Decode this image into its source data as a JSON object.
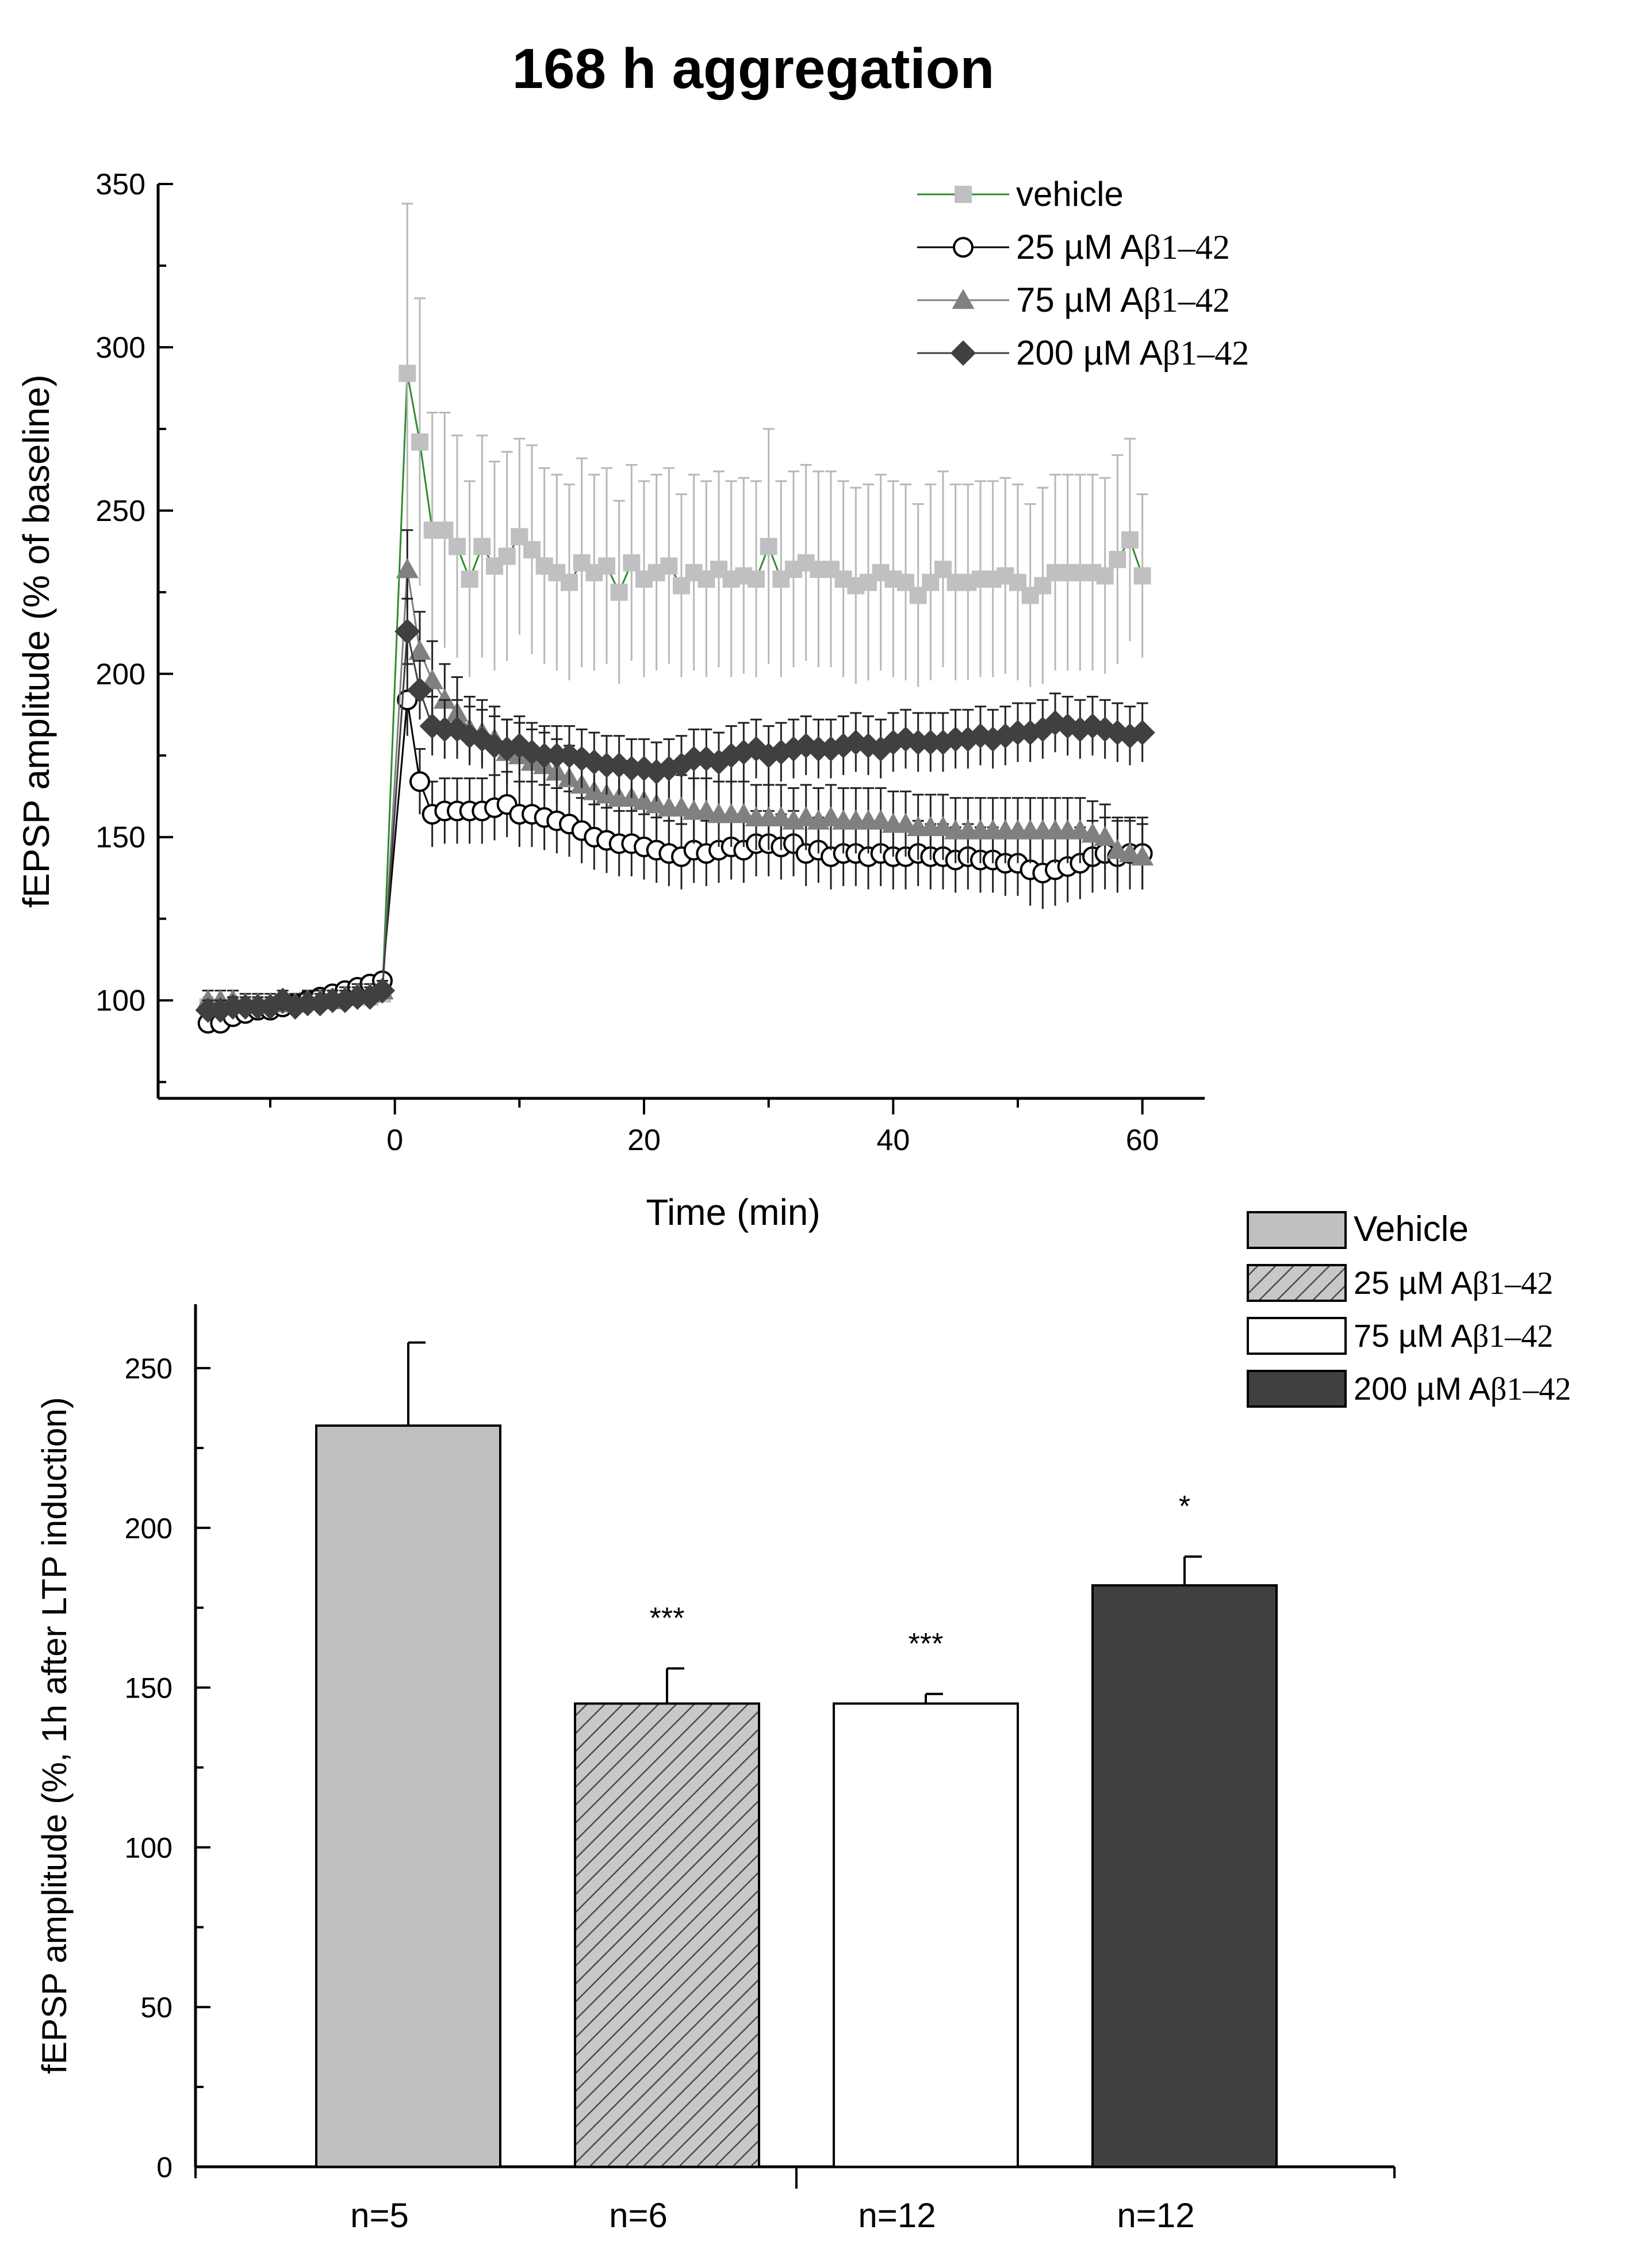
{
  "title": "168 h aggregation",
  "chart_data": [
    {
      "type": "line",
      "title": "168 h aggregation",
      "xlabel": "Time (min)",
      "ylabel": "fEPSP amplitude (% of baseline)",
      "xlim": [
        -19,
        65
      ],
      "ylim": [
        70,
        350
      ],
      "xticks": [
        0,
        20,
        40,
        60
      ],
      "yticks": [
        100,
        150,
        200,
        250,
        300,
        350
      ],
      "legend_position": "top-right",
      "series": [
        {
          "name": "vehicle",
          "legend_label": "vehicle",
          "marker": "square",
          "color": "#c0c0c0",
          "line_color": "#2e8b2e",
          "x": [
            -15,
            -14,
            -13,
            -12,
            -11,
            -10,
            -9,
            -8,
            -7,
            -6,
            -5,
            -4,
            -3,
            -2,
            -1,
            1,
            2,
            3,
            4,
            5,
            6,
            7,
            8,
            9,
            10,
            11,
            12,
            13,
            14,
            15,
            16,
            17,
            18,
            19,
            20,
            21,
            22,
            23,
            24,
            25,
            26,
            27,
            28,
            29,
            30,
            31,
            32,
            33,
            34,
            35,
            36,
            37,
            38,
            39,
            40,
            41,
            42,
            43,
            44,
            45,
            46,
            47,
            48,
            49,
            50,
            51,
            52,
            53,
            54,
            55,
            56,
            57,
            58,
            59,
            60
          ],
          "y": [
            98,
            97,
            98,
            97,
            98,
            98,
            99,
            99,
            100,
            100,
            100,
            101,
            101,
            101,
            102,
            292,
            271,
            244,
            244,
            239,
            229,
            239,
            233,
            236,
            242,
            238,
            233,
            231,
            228,
            234,
            231,
            233,
            225,
            234,
            229,
            231,
            233,
            227,
            231,
            229,
            232,
            229,
            230,
            229,
            239,
            229,
            232,
            234,
            232,
            232,
            229,
            227,
            228,
            231,
            229,
            228,
            224,
            228,
            232,
            228,
            228,
            229,
            229,
            230,
            228,
            224,
            227,
            231,
            231,
            231,
            231,
            230,
            235,
            241,
            230
          ],
          "err": [
            3,
            3,
            3,
            3,
            3,
            3,
            3,
            3,
            3,
            3,
            3,
            3,
            3,
            3,
            3,
            52,
            44,
            36,
            36,
            34,
            30,
            34,
            32,
            32,
            30,
            32,
            30,
            30,
            30,
            32,
            30,
            30,
            28,
            30,
            30,
            30,
            30,
            28,
            30,
            30,
            30,
            30,
            30,
            30,
            36,
            30,
            30,
            30,
            30,
            30,
            30,
            30,
            30,
            30,
            30,
            30,
            28,
            30,
            30,
            30,
            30,
            30,
            30,
            30,
            30,
            28,
            30,
            30,
            30,
            30,
            30,
            30,
            32,
            31,
            25
          ]
        },
        {
          "name": "25 µM Aβ1–42",
          "legend_prefix": "25 µM A",
          "legend_suffix": "β1–42",
          "marker": "circle-open",
          "color": "#000000",
          "line_color": "#000000",
          "x": [
            -15,
            -14,
            -13,
            -12,
            -11,
            -10,
            -9,
            -8,
            -7,
            -6,
            -5,
            -4,
            -3,
            -2,
            -1,
            1,
            2,
            3,
            4,
            5,
            6,
            7,
            8,
            9,
            10,
            11,
            12,
            13,
            14,
            15,
            16,
            17,
            18,
            19,
            20,
            21,
            22,
            23,
            24,
            25,
            26,
            27,
            28,
            29,
            30,
            31,
            32,
            33,
            34,
            35,
            36,
            37,
            38,
            39,
            40,
            41,
            42,
            43,
            44,
            45,
            46,
            47,
            48,
            49,
            50,
            51,
            52,
            53,
            54,
            55,
            56,
            57,
            58,
            59,
            60
          ],
          "y": [
            93,
            93,
            95,
            96,
            97,
            97,
            98,
            99,
            100,
            101,
            102,
            103,
            104,
            105,
            106,
            192,
            167,
            157,
            158,
            158,
            158,
            158,
            159,
            160,
            157,
            157,
            156,
            155,
            154,
            152,
            150,
            149,
            148,
            148,
            147,
            146,
            145,
            144,
            146,
            145,
            146,
            147,
            146,
            148,
            148,
            147,
            148,
            145,
            146,
            144,
            145,
            145,
            144,
            145,
            144,
            144,
            145,
            144,
            144,
            143,
            144,
            143,
            143,
            142,
            142,
            140,
            139,
            140,
            141,
            142,
            144,
            145,
            144,
            145,
            145
          ],
          "err": [
            2,
            2,
            2,
            2,
            2,
            2,
            2,
            2,
            2,
            2,
            2,
            2,
            2,
            2,
            2,
            11,
            10,
            10,
            10,
            10,
            10,
            10,
            10,
            10,
            10,
            10,
            10,
            10,
            10,
            10,
            10,
            10,
            10,
            10,
            10,
            10,
            10,
            10,
            10,
            10,
            10,
            10,
            10,
            10,
            10,
            10,
            10,
            10,
            10,
            10,
            10,
            10,
            10,
            10,
            10,
            10,
            10,
            10,
            10,
            10,
            10,
            10,
            10,
            10,
            10,
            11,
            11,
            11,
            11,
            11,
            11,
            11,
            11,
            11,
            11
          ]
        },
        {
          "name": "75 µM Aβ1–42",
          "legend_prefix": "75 µM A",
          "legend_suffix": "β1–42",
          "marker": "triangle",
          "color": "#808080",
          "line_color": "#808080",
          "x": [
            -15,
            -14,
            -13,
            -12,
            -11,
            -10,
            -9,
            -8,
            -7,
            -6,
            -5,
            -4,
            -3,
            -2,
            -1,
            1,
            2,
            3,
            4,
            5,
            6,
            7,
            8,
            9,
            10,
            11,
            12,
            13,
            14,
            15,
            16,
            17,
            18,
            19,
            20,
            21,
            22,
            23,
            24,
            25,
            26,
            27,
            28,
            29,
            30,
            31,
            32,
            33,
            34,
            35,
            36,
            37,
            38,
            39,
            40,
            41,
            42,
            43,
            44,
            45,
            46,
            47,
            48,
            49,
            50,
            51,
            52,
            53,
            54,
            55,
            56,
            57,
            58,
            59,
            60
          ],
          "y": [
            100,
            100,
            100,
            99,
            99,
            99,
            99,
            99,
            100,
            100,
            100,
            101,
            102,
            102,
            103,
            232,
            207,
            198,
            192,
            188,
            183,
            182,
            180,
            176,
            175,
            173,
            172,
            170,
            168,
            166,
            164,
            163,
            162,
            162,
            161,
            160,
            159,
            159,
            158,
            158,
            157,
            157,
            157,
            156,
            156,
            156,
            155,
            156,
            155,
            156,
            155,
            155,
            155,
            155,
            154,
            154,
            153,
            153,
            153,
            152,
            152,
            152,
            152,
            152,
            152,
            152,
            152,
            152,
            152,
            152,
            151,
            150,
            146,
            145,
            144
          ],
          "err": [
            3,
            3,
            3,
            3,
            3,
            3,
            3,
            3,
            3,
            3,
            3,
            3,
            3,
            3,
            3,
            12,
            12,
            12,
            11,
            11,
            10,
            10,
            10,
            10,
            10,
            10,
            10,
            10,
            10,
            10,
            10,
            10,
            10,
            10,
            10,
            10,
            10,
            10,
            10,
            10,
            10,
            10,
            10,
            10,
            10,
            10,
            10,
            10,
            10,
            10,
            10,
            10,
            10,
            10,
            10,
            10,
            10,
            10,
            10,
            10,
            10,
            10,
            10,
            10,
            10,
            10,
            10,
            10,
            10,
            10,
            10,
            10,
            10,
            10,
            10
          ]
        },
        {
          "name": "200 µM Aβ1–42",
          "legend_prefix": "200 µM A",
          "legend_suffix": "β1–42",
          "marker": "diamond",
          "color": "#404040",
          "line_color": "#404040",
          "x": [
            -15,
            -14,
            -13,
            -12,
            -11,
            -10,
            -9,
            -8,
            -7,
            -6,
            -5,
            -4,
            -3,
            -2,
            -1,
            1,
            2,
            3,
            4,
            5,
            6,
            7,
            8,
            9,
            10,
            11,
            12,
            13,
            14,
            15,
            16,
            17,
            18,
            19,
            20,
            21,
            22,
            23,
            24,
            25,
            26,
            27,
            28,
            29,
            30,
            31,
            32,
            33,
            34,
            35,
            36,
            37,
            38,
            39,
            40,
            41,
            42,
            43,
            44,
            45,
            46,
            47,
            48,
            49,
            50,
            51,
            52,
            53,
            54,
            55,
            56,
            57,
            58,
            59,
            60
          ],
          "y": [
            97,
            97,
            98,
            98,
            98,
            98,
            100,
            98,
            99,
            99,
            100,
            100,
            101,
            101,
            103,
            213,
            195,
            184,
            183,
            183,
            181,
            180,
            178,
            177,
            178,
            176,
            175,
            175,
            175,
            174,
            173,
            172,
            172,
            171,
            171,
            170,
            171,
            172,
            174,
            174,
            173,
            175,
            176,
            177,
            175,
            176,
            177,
            178,
            177,
            177,
            178,
            179,
            178,
            177,
            179,
            180,
            179,
            179,
            179,
            180,
            180,
            181,
            180,
            181,
            182,
            182,
            183,
            185,
            184,
            183,
            184,
            183,
            182,
            181,
            182
          ],
          "err": [
            3,
            3,
            3,
            3,
            3,
            3,
            3,
            3,
            3,
            3,
            3,
            3,
            3,
            3,
            3,
            10,
            9,
            9,
            9,
            9,
            9,
            9,
            9,
            9,
            9,
            9,
            9,
            9,
            9,
            9,
            9,
            9,
            9,
            9,
            9,
            9,
            9,
            9,
            9,
            9,
            9,
            9,
            9,
            9,
            9,
            9,
            9,
            9,
            9,
            9,
            9,
            9,
            9,
            9,
            9,
            9,
            9,
            9,
            9,
            9,
            9,
            9,
            9,
            9,
            9,
            9,
            9,
            9,
            9,
            9,
            9,
            9,
            9,
            9,
            9
          ]
        }
      ]
    },
    {
      "type": "bar",
      "title": "",
      "xlabel": "",
      "ylabel": "fEPSP amplitude (%, 1h after LTP induction)",
      "ylim": [
        0,
        270
      ],
      "yticks": [
        0,
        50,
        100,
        150,
        200,
        250
      ],
      "legend_position": "top-right",
      "categories": [
        "n=5",
        "n=6",
        "n=12",
        "n=12"
      ],
      "series": [
        {
          "name": "Vehicle",
          "legend_prefix": "Vehicle",
          "legend_suffix": "",
          "fill": "#c0c0c0",
          "pattern": "solid",
          "value": 232,
          "err": 26,
          "significance": ""
        },
        {
          "name": "25 µM Aβ1–42",
          "legend_prefix": "25 µM A",
          "legend_suffix": "β1–42",
          "fill": "#c8c8c8",
          "pattern": "hatch",
          "value": 145,
          "err": 11,
          "significance": "***"
        },
        {
          "name": "75 µM Aβ1–42",
          "legend_prefix": "75 µM A",
          "legend_suffix": "β1–42",
          "fill": "#ffffff",
          "pattern": "solid",
          "value": 145,
          "err": 3,
          "significance": "***"
        },
        {
          "name": "200 µM Aβ1–42",
          "legend_prefix": "200 µM A",
          "legend_suffix": "β1–42",
          "fill": "#404040",
          "pattern": "solid",
          "value": 182,
          "err": 9,
          "significance": "*"
        }
      ]
    }
  ]
}
